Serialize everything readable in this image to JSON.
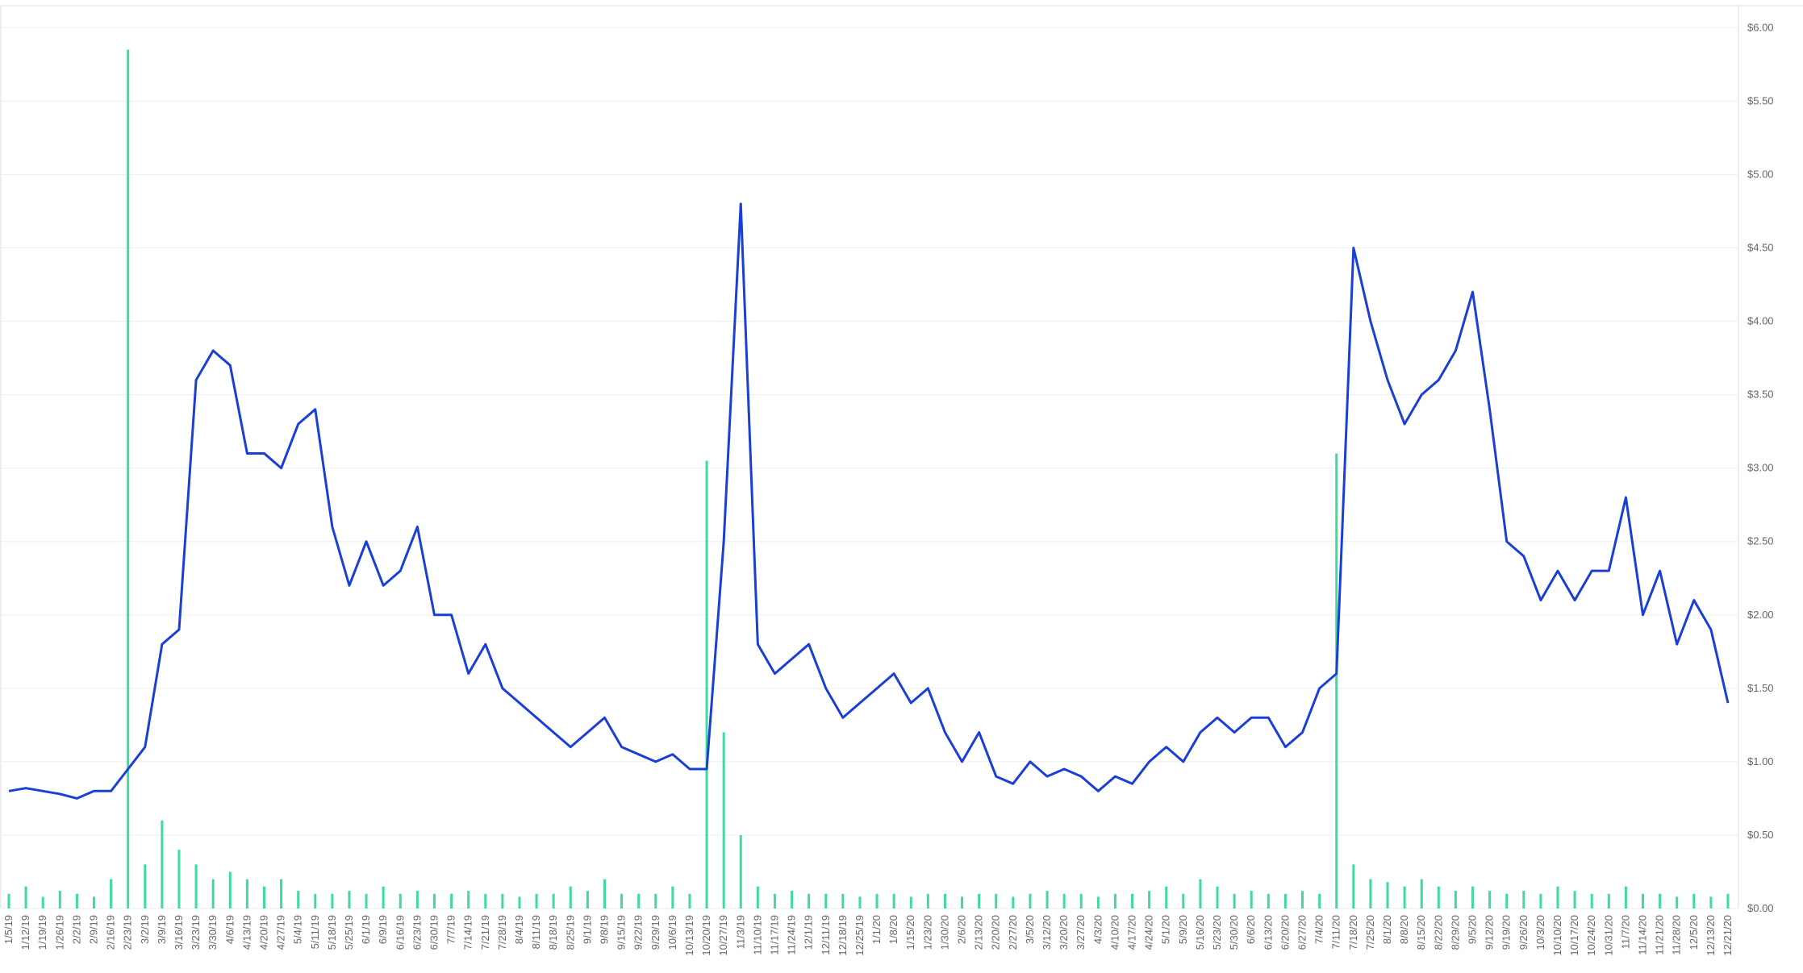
{
  "chart_data": {
    "type": "line",
    "categories": [
      "1/5/19",
      "1/12/19",
      "1/19/19",
      "1/26/19",
      "2/2/19",
      "2/9/19",
      "2/16/19",
      "2/23/19",
      "3/2/19",
      "3/9/19",
      "3/16/19",
      "3/23/19",
      "3/30/19",
      "4/6/19",
      "4/13/19",
      "4/20/19",
      "4/27/19",
      "5/4/19",
      "5/11/19",
      "5/18/19",
      "5/25/19",
      "6/1/19",
      "6/9/19",
      "6/16/19",
      "6/23/19",
      "6/30/19",
      "7/7/19",
      "7/14/19",
      "7/21/19",
      "7/28/19",
      "8/4/19",
      "8/11/19",
      "8/18/19",
      "8/25/19",
      "9/1/19",
      "9/8/19",
      "9/15/19",
      "9/22/19",
      "9/29/19",
      "10/6/19",
      "10/13/19",
      "10/20/19",
      "10/27/19",
      "11/3/19",
      "11/10/19",
      "11/17/19",
      "11/24/19",
      "12/1/19",
      "12/11/19",
      "12/18/19",
      "12/25/19",
      "1/1/20",
      "1/8/20",
      "1/15/20",
      "1/23/20",
      "1/30/20",
      "2/6/20",
      "2/13/20",
      "2/20/20",
      "2/27/20",
      "3/5/20",
      "3/12/20",
      "3/20/20",
      "3/27/20",
      "4/3/20",
      "4/10/20",
      "4/17/20",
      "4/24/20",
      "5/1/20",
      "5/9/20",
      "5/16/20",
      "5/23/20",
      "5/30/20",
      "6/6/20",
      "6/13/20",
      "6/20/20",
      "6/27/20",
      "7/4/20",
      "7/11/20",
      "7/18/20",
      "7/25/20",
      "8/1/20",
      "8/8/20",
      "8/15/20",
      "8/22/20",
      "8/29/20",
      "9/5/20",
      "9/12/20",
      "9/19/20",
      "9/26/20",
      "10/3/20",
      "10/10/20",
      "10/17/20",
      "10/24/20",
      "10/31/20",
      "11/7/20",
      "11/14/20",
      "11/21/20",
      "11/28/20",
      "12/5/20",
      "12/13/20",
      "12/21/20"
    ],
    "series": [
      {
        "type": "bar",
        "color": "#3ddc9c",
        "values": [
          0.1,
          0.15,
          0.08,
          0.12,
          0.1,
          0.08,
          0.2,
          5.85,
          0.3,
          0.6,
          0.4,
          0.3,
          0.2,
          0.25,
          0.2,
          0.15,
          0.2,
          0.12,
          0.1,
          0.1,
          0.12,
          0.1,
          0.15,
          0.1,
          0.12,
          0.1,
          0.1,
          0.12,
          0.1,
          0.1,
          0.08,
          0.1,
          0.1,
          0.15,
          0.12,
          0.2,
          0.1,
          0.1,
          0.1,
          0.15,
          0.1,
          3.05,
          1.2,
          0.5,
          0.15,
          0.1,
          0.12,
          0.1,
          0.1,
          0.1,
          0.08,
          0.1,
          0.1,
          0.08,
          0.1,
          0.1,
          0.08,
          0.1,
          0.1,
          0.08,
          0.1,
          0.12,
          0.1,
          0.1,
          0.08,
          0.1,
          0.1,
          0.12,
          0.15,
          0.1,
          0.2,
          0.15,
          0.1,
          0.12,
          0.1,
          0.1,
          0.12,
          0.1,
          3.1,
          0.3,
          0.2,
          0.18,
          0.15,
          0.2,
          0.15,
          0.12,
          0.15,
          0.12,
          0.1,
          0.12,
          0.1,
          0.15,
          0.12,
          0.1,
          0.1,
          0.15,
          0.1,
          0.1,
          0.08,
          0.1,
          0.08,
          0.1
        ]
      },
      {
        "type": "line",
        "color": "#1a3fd6",
        "values": [
          0.8,
          0.82,
          0.8,
          0.78,
          0.75,
          0.8,
          0.8,
          0.95,
          1.1,
          1.8,
          1.9,
          3.6,
          3.8,
          3.7,
          3.1,
          3.1,
          3.0,
          3.3,
          3.4,
          2.6,
          2.2,
          2.5,
          2.2,
          2.3,
          2.6,
          2.0,
          2.0,
          1.6,
          1.8,
          1.5,
          1.4,
          1.3,
          1.2,
          1.1,
          1.2,
          1.3,
          1.1,
          1.05,
          1.0,
          1.05,
          0.95,
          0.95,
          2.5,
          4.8,
          1.8,
          1.6,
          1.7,
          1.8,
          1.5,
          1.3,
          1.4,
          1.5,
          1.6,
          1.4,
          1.5,
          1.2,
          1.0,
          1.2,
          0.9,
          0.85,
          1.0,
          0.9,
          0.95,
          0.9,
          0.8,
          0.9,
          0.85,
          1.0,
          1.1,
          1.0,
          1.2,
          1.3,
          1.2,
          1.3,
          1.3,
          1.1,
          1.2,
          1.5,
          1.6,
          4.5,
          4.0,
          3.6,
          3.3,
          3.5,
          3.6,
          3.8,
          4.2,
          3.4,
          2.5,
          2.4,
          2.1,
          2.3,
          2.1,
          2.3,
          2.3,
          2.8,
          2.0,
          2.3,
          1.8,
          2.1,
          1.9,
          1.4
        ]
      }
    ],
    "ylim": [
      0,
      6.15
    ],
    "yticks": [
      {
        "value": 0,
        "label": "$0.00"
      },
      {
        "value": 0.5,
        "label": "$0.50"
      },
      {
        "value": 1,
        "label": "$1.00"
      },
      {
        "value": 1.5,
        "label": "$1.50"
      },
      {
        "value": 2,
        "label": "$2.00"
      },
      {
        "value": 2.5,
        "label": "$2.50"
      },
      {
        "value": 3,
        "label": "$3.00"
      },
      {
        "value": 3.5,
        "label": "$3.50"
      },
      {
        "value": 4,
        "label": "$4.00"
      },
      {
        "value": 4.5,
        "label": "$4.50"
      },
      {
        "value": 5,
        "label": "$5.00"
      },
      {
        "value": 5.5,
        "label": "$5.50"
      },
      {
        "value": 6,
        "label": "$6.00"
      }
    ],
    "grid": true
  }
}
